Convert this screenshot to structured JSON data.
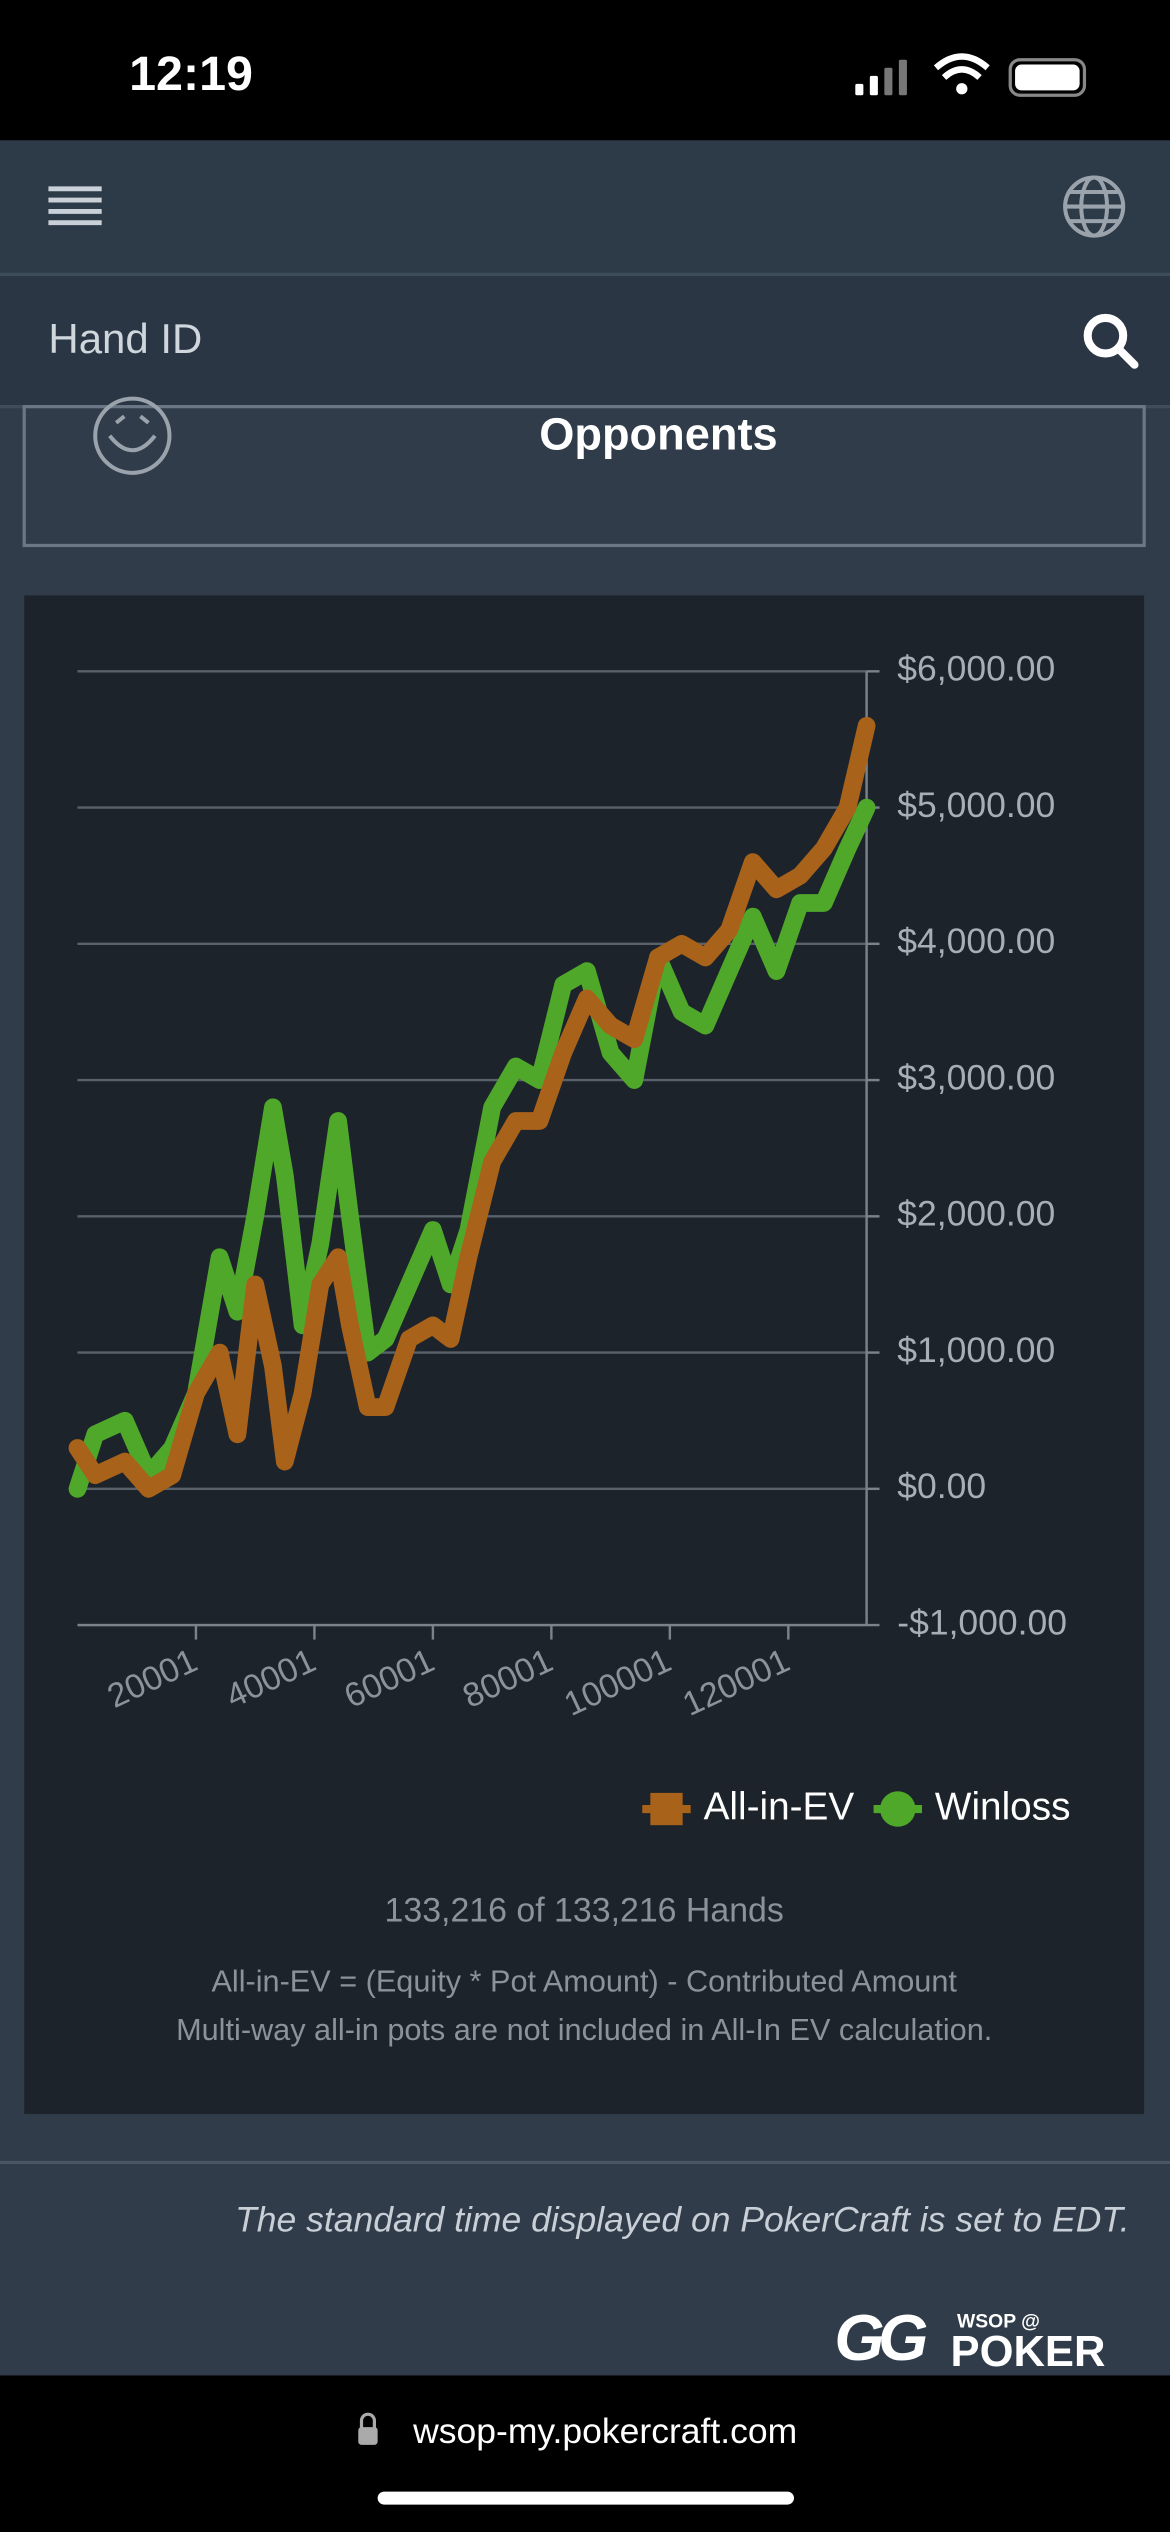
{
  "status_bar": {
    "time": "12:19"
  },
  "search": {
    "placeholder": "Hand ID"
  },
  "section": {
    "title": "Opponents"
  },
  "chart_data": {
    "type": "line",
    "x": [
      1,
      3000,
      8000,
      12000,
      16000,
      20000,
      24000,
      27000,
      30000,
      33000,
      35000,
      38000,
      41000,
      44000,
      46000,
      49000,
      52000,
      56000,
      60000,
      63000,
      66000,
      70000,
      74000,
      78000,
      82000,
      86000,
      90000,
      94000,
      98000,
      102000,
      106000,
      110000,
      114000,
      118000,
      122000,
      126000,
      130000,
      133216
    ],
    "series": [
      {
        "name": "All-in-EV",
        "color": "#a8621a",
        "marker": "square",
        "values": [
          300,
          100,
          200,
          0,
          100,
          700,
          1000,
          400,
          1500,
          900,
          200,
          700,
          1500,
          1700,
          1200,
          600,
          600,
          1100,
          1200,
          1100,
          1700,
          2400,
          2700,
          2700,
          3200,
          3600,
          3400,
          3300,
          3900,
          4000,
          3900,
          4100,
          4600,
          4400,
          4500,
          4700,
          5000,
          5600
        ]
      },
      {
        "name": "Winloss",
        "color": "#4fa82a",
        "marker": "circle",
        "values": [
          0,
          400,
          500,
          100,
          300,
          700,
          1700,
          1300,
          2000,
          2800,
          2300,
          1200,
          1800,
          2700,
          2000,
          1000,
          1100,
          1500,
          1900,
          1500,
          1900,
          2800,
          3100,
          3000,
          3700,
          3800,
          3200,
          3000,
          3900,
          3500,
          3400,
          3800,
          4200,
          3800,
          4300,
          4300,
          4700,
          5000
        ]
      }
    ],
    "xlim": [
      1,
      133216
    ],
    "xticks": [
      20001,
      40001,
      60001,
      80001,
      100001,
      120001
    ],
    "ylim": [
      -1000,
      6000
    ],
    "yticks": [
      {
        "value": -1000,
        "label": "-$1,000.00"
      },
      {
        "value": 0,
        "label": "$0.00"
      },
      {
        "value": 1000,
        "label": "$1,000.00"
      },
      {
        "value": 2000,
        "label": "$2,000.00"
      },
      {
        "value": 3000,
        "label": "$3,000.00"
      },
      {
        "value": 4000,
        "label": "$4,000.00"
      },
      {
        "value": 5000,
        "label": "$5,000.00"
      },
      {
        "value": 6000,
        "label": "$6,000.00"
      }
    ],
    "grid": true,
    "legend": "bottom-right",
    "summary": "133,216 of 133,216 Hands",
    "notes": [
      "All-in-EV = (Equity * Pot Amount) - Contributed Amount",
      "Multi-way all-in pots are not included in All-In EV calculation."
    ]
  },
  "footer": {
    "timezone": "The standard time displayed on PokerCraft is set to EDT.",
    "logo": {
      "tag": "WSOP @",
      "mark": "GG",
      "brand": "POKER"
    }
  },
  "browser": {
    "url": "wsop-my.pokercraft.com"
  }
}
